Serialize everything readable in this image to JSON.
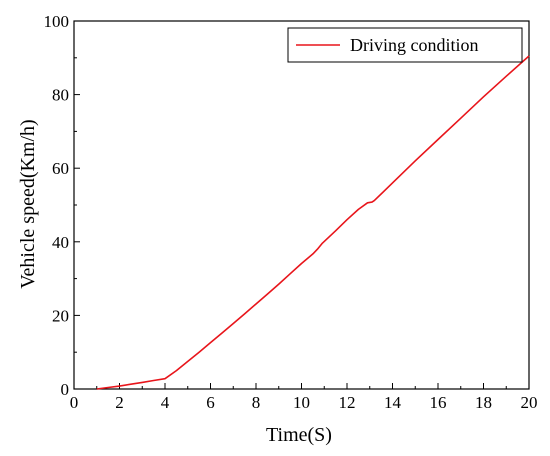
{
  "chart_data": {
    "type": "line",
    "title": "",
    "xlabel": "Time(S)",
    "ylabel": "Vehicle speed(Km/h)",
    "xlim": [
      0,
      20
    ],
    "ylim": [
      0,
      100
    ],
    "x_ticks": [
      0,
      2,
      4,
      6,
      8,
      10,
      12,
      14,
      16,
      18,
      20
    ],
    "y_ticks": [
      0,
      20,
      40,
      60,
      80,
      100
    ],
    "grid": false,
    "legend_position": "top-right",
    "series": [
      {
        "name": "Driving condition",
        "color": "#e8151b",
        "x": [
          1.0,
          1.5,
          2.0,
          2.5,
          3.0,
          3.5,
          4.0,
          4.5,
          5.0,
          5.5,
          6.0,
          6.5,
          7.0,
          7.5,
          8.0,
          8.5,
          9.0,
          9.5,
          10.0,
          10.5,
          10.7,
          10.9,
          11.5,
          12.0,
          12.5,
          12.9,
          13.1,
          13.2,
          14.0,
          15.0,
          16.0,
          17.0,
          18.0,
          19.0,
          20.0
        ],
        "y": [
          0.0,
          0.4,
          0.8,
          1.3,
          1.8,
          2.3,
          2.8,
          5.0,
          7.5,
          10.0,
          12.6,
          15.2,
          17.8,
          20.4,
          23.1,
          25.8,
          28.5,
          31.3,
          34.1,
          36.7,
          38.0,
          39.5,
          43.0,
          46.0,
          48.8,
          50.6,
          50.8,
          51.2,
          56.0,
          62.0,
          67.8,
          73.6,
          79.4,
          85.0,
          90.5
        ]
      }
    ]
  }
}
